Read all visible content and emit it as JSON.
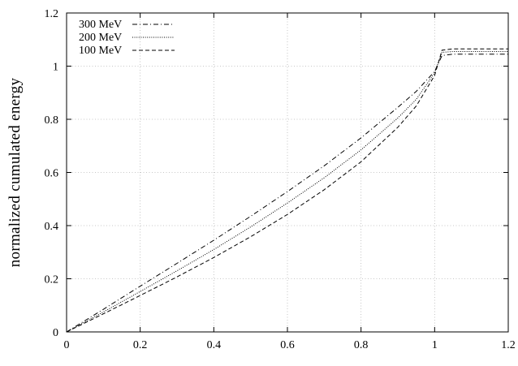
{
  "chart_data": {
    "type": "line",
    "xlabel": "",
    "ylabel": "normalized cumulated energy",
    "xlim": [
      0,
      1.2
    ],
    "ylim": [
      0,
      1.2
    ],
    "xticks": [
      "0",
      "0.2",
      "0.4",
      "0.6",
      "0.8",
      "1",
      "1.2"
    ],
    "yticks": [
      "0",
      "0.2",
      "0.4",
      "0.6",
      "0.8",
      "1",
      "1.2"
    ],
    "grid": true,
    "legend_position": "top-left",
    "series": [
      {
        "name": "300 MeV",
        "style": "dash-dot",
        "x": [
          0,
          0.1,
          0.2,
          0.3,
          0.4,
          0.5,
          0.6,
          0.7,
          0.8,
          0.9,
          0.95,
          1.0,
          1.02,
          1.05,
          1.1,
          1.2
        ],
        "y": [
          0,
          0.085,
          0.172,
          0.258,
          0.345,
          0.435,
          0.528,
          0.625,
          0.73,
          0.845,
          0.905,
          0.98,
          1.04,
          1.045,
          1.045,
          1.045
        ]
      },
      {
        "name": "200 MeV",
        "style": "dotted",
        "x": [
          0,
          0.1,
          0.2,
          0.3,
          0.4,
          0.5,
          0.6,
          0.7,
          0.8,
          0.9,
          0.95,
          1.0,
          1.02,
          1.05,
          1.1,
          1.2
        ],
        "y": [
          0,
          0.075,
          0.152,
          0.23,
          0.31,
          0.395,
          0.485,
          0.58,
          0.685,
          0.805,
          0.875,
          0.975,
          1.052,
          1.055,
          1.055,
          1.055
        ]
      },
      {
        "name": "100 MeV",
        "style": "dashed",
        "x": [
          0,
          0.1,
          0.2,
          0.3,
          0.4,
          0.5,
          0.6,
          0.7,
          0.8,
          0.9,
          0.95,
          1.0,
          1.02,
          1.05,
          1.1,
          1.2
        ],
        "y": [
          0,
          0.068,
          0.137,
          0.207,
          0.28,
          0.358,
          0.442,
          0.535,
          0.64,
          0.77,
          0.85,
          0.965,
          1.06,
          1.065,
          1.065,
          1.065
        ]
      }
    ]
  }
}
